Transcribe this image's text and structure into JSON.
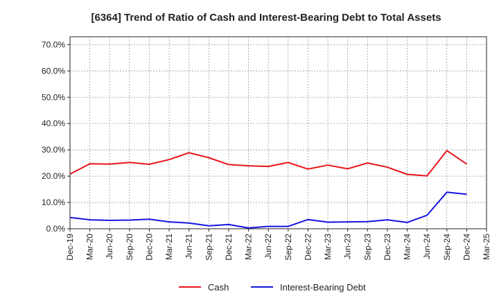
{
  "chart_data": {
    "type": "line",
    "title": "[6364]  Trend of Ratio of Cash and Interest-Bearing Debt to Total Assets",
    "xlabel": "",
    "ylabel": "",
    "ylim": [
      0,
      73
    ],
    "y_ticks": [
      0,
      10,
      20,
      30,
      40,
      50,
      60,
      70
    ],
    "y_tick_labels": [
      "0.0%",
      "10.0%",
      "20.0%",
      "30.0%",
      "40.0%",
      "50.0%",
      "60.0%",
      "70.0%"
    ],
    "categories": [
      "Dec-19",
      "Mar-20",
      "Jun-20",
      "Sep-20",
      "Dec-20",
      "Mar-21",
      "Jun-21",
      "Sep-21",
      "Dec-21",
      "Mar-22",
      "Jun-22",
      "Sep-22",
      "Dec-22",
      "Mar-23",
      "Jun-23",
      "Sep-23",
      "Dec-23",
      "Mar-24",
      "Jun-24",
      "Sep-24",
      "Dec-24",
      "Mar-25"
    ],
    "grid": true,
    "legend_position": "bottom",
    "series": [
      {
        "name": "Cash",
        "color": "#e8141b",
        "values": [
          20.8,
          24.7,
          24.6,
          25.2,
          24.5,
          26.3,
          28.9,
          27.0,
          24.4,
          23.9,
          23.7,
          25.2,
          22.7,
          24.2,
          22.8,
          25.0,
          23.4,
          20.7,
          20.1,
          29.7,
          24.6,
          null
        ]
      },
      {
        "name": "Interest-Bearing Debt",
        "color": "#1414e0",
        "values": [
          4.3,
          3.4,
          3.2,
          3.3,
          3.6,
          2.6,
          2.2,
          1.1,
          1.6,
          0.3,
          0.9,
          0.9,
          3.5,
          2.5,
          2.6,
          2.7,
          3.4,
          2.4,
          5.1,
          13.9,
          13.1,
          null
        ]
      }
    ]
  }
}
